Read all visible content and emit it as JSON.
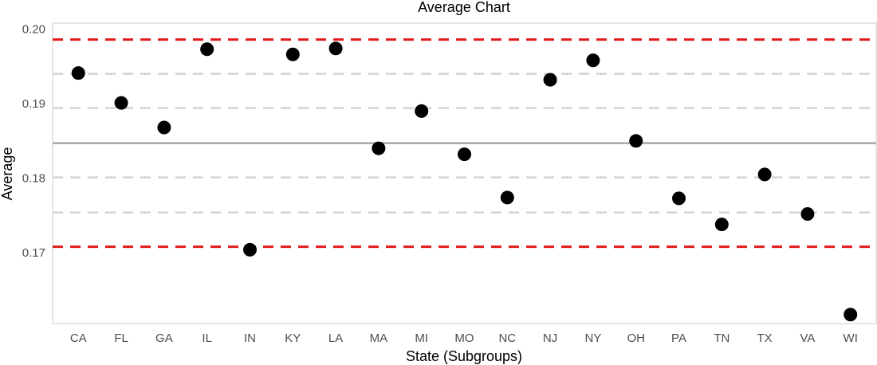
{
  "chart_data": {
    "type": "scatter",
    "title": "Average Chart",
    "xlabel": "State (Subgroups)",
    "ylabel": "Average",
    "categories": [
      "CA",
      "FL",
      "GA",
      "IL",
      "IN",
      "KY",
      "LA",
      "MA",
      "MI",
      "MO",
      "NC",
      "NJ",
      "NY",
      "OH",
      "PA",
      "TN",
      "TX",
      "VA",
      "WI"
    ],
    "values": [
      0.1941,
      0.1901,
      0.1868,
      0.1973,
      0.1704,
      0.1966,
      0.1974,
      0.184,
      0.189,
      0.1832,
      0.1774,
      0.1932,
      0.1958,
      0.185,
      0.1773,
      0.1738,
      0.1805,
      0.1752,
      0.1617
    ],
    "ylim": [
      0.1605,
      0.2008
    ],
    "yticks": [
      "0.17",
      "0.18",
      "0.19",
      "0.20"
    ],
    "center_line": 0.1847,
    "control_limits": {
      "upper": 0.1986,
      "lower": 0.1708
    },
    "sigma_lines": [
      0.194,
      0.1894,
      0.1801,
      0.1754
    ],
    "grid": false,
    "colors": {
      "points": "#000000",
      "center_line": "#a6a6a6",
      "control_limits": "#e31a1c",
      "sigma_lines": "#d3d3d3",
      "frame": "#cccccc"
    }
  }
}
